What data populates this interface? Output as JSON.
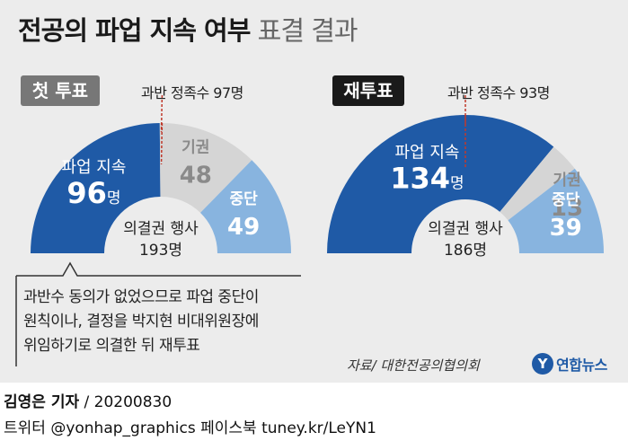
{
  "title": {
    "main": "전공의 파업 지속 여부",
    "sub": "표결 결과"
  },
  "chart_data": [
    {
      "type": "pie",
      "variant": "half-donut",
      "round_label": "첫 투표",
      "quorum_label": "과반 정족수 97명",
      "quorum": 97,
      "total_label": "의결권 행사",
      "total": 193,
      "total_value": "193명",
      "slices": [
        {
          "name": "파업 지속",
          "value": 96,
          "value_label": "96",
          "unit": "명",
          "color": "#1f5aa6",
          "text_color": "#ffffff"
        },
        {
          "name": "기권",
          "value": 48,
          "value_label": "48",
          "unit": "",
          "color": "#d5d5d5",
          "text_color": "#8a8a8a"
        },
        {
          "name": "중단",
          "value": 49,
          "value_label": "49",
          "unit": "",
          "color": "#88b4df",
          "text_color": "#ffffff"
        }
      ]
    },
    {
      "type": "pie",
      "variant": "half-donut",
      "round_label": "재투표",
      "quorum_label": "과반 정족수 93명",
      "quorum": 93,
      "total_label": "의결권 행사",
      "total": 186,
      "total_value": "186명",
      "slices": [
        {
          "name": "파업 지속",
          "value": 134,
          "value_label": "134",
          "unit": "명",
          "color": "#1f5aa6",
          "text_color": "#ffffff"
        },
        {
          "name": "기권",
          "value": 13,
          "value_label": "13",
          "unit": "",
          "color": "#d5d5d5",
          "text_color": "#8a8a8a"
        },
        {
          "name": "중단",
          "value": 39,
          "value_label": "39",
          "unit": "",
          "color": "#88b4df",
          "text_color": "#ffffff"
        }
      ]
    }
  ],
  "note": {
    "lines": [
      "과반수 동의가 없었으므로 파업 중단이",
      "원칙이나, 결정을 박지현 비대위원장에",
      "위임하기로 의결한 뒤 재투표"
    ]
  },
  "source": "자료/ 대한전공의협의회",
  "logo": {
    "mark": "Y",
    "name": "연합뉴스"
  },
  "credit": {
    "author": "김영은 기자",
    "date": " / 20200830"
  },
  "social": "트위터 @yonhap_graphics  페이스북 tuney.kr/LeYN1",
  "colors": {
    "strike": "#1f5aa6",
    "abstain": "#d5d5d5",
    "stop": "#88b4df",
    "quorum_line": "#c0392b"
  }
}
